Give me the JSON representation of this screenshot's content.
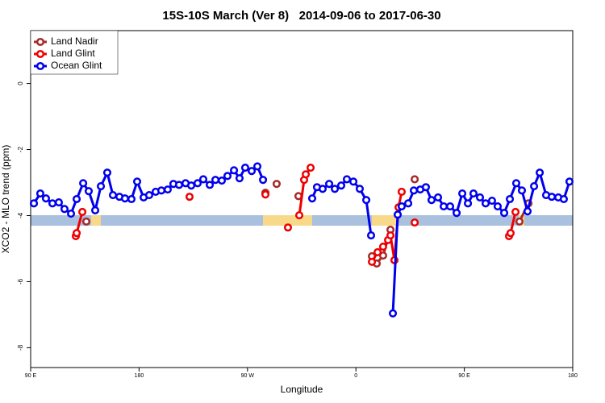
{
  "chart_data": {
    "type": "line",
    "title": "15S-10S March (Ver 8)   2014-09-06 to 2017-06-30",
    "x_label": "Longitude",
    "y_label": "XCO2 - MLO trend (ppm)",
    "xlim": [
      90,
      540
    ],
    "ylim": [
      -8.6,
      1.6
    ],
    "xticks": [
      {
        "value": 90,
        "label": "90 E"
      },
      {
        "value": 180,
        "label": "180"
      },
      {
        "value": 270,
        "label": "90 W"
      },
      {
        "value": 360,
        "label": "0"
      },
      {
        "value": 450,
        "label": "90 E"
      },
      {
        "value": 540,
        "label": "180"
      }
    ],
    "yticks": [
      0,
      -2,
      -4,
      -6,
      -8
    ],
    "legend": "top-left",
    "series": [
      {
        "name": "Land Nadir",
        "color": "#a52a2a",
        "x": [
          136.2,
          null,
          284.9,
          null,
          294.2,
          null,
          312.3,
          null,
          373.3,
          377.3,
          382.6,
          388.7,
          null,
          408.8,
          null,
          495.8,
          503.2
        ],
        "values": [
          -4.18,
          null,
          -3.31,
          null,
          -3.04,
          null,
          -3.41,
          null,
          -5.23,
          -5.45,
          -5.21,
          -4.43,
          null,
          -2.9,
          null,
          -4.18,
          -3.63
        ]
      },
      {
        "name": "Land Glint",
        "color": "#ee0000",
        "x": [
          127.5,
          128.2,
          132.9,
          null,
          221.9,
          null,
          284.9,
          null,
          303.6,
          null,
          313.0,
          317.0,
          318.4,
          322.4,
          null,
          373.3,
          378.0,
          382.6,
          386.7,
          388.7,
          392.0,
          395.4,
          398.0,
          null,
          408.8,
          null,
          487.1,
          488.4,
          492.5
        ],
        "values": [
          -4.62,
          -4.53,
          -3.89,
          null,
          -3.43,
          null,
          -3.36,
          null,
          -4.36,
          null,
          -3.99,
          -2.92,
          -2.75,
          -2.55,
          null,
          -5.4,
          -5.11,
          -4.94,
          -4.74,
          -4.6,
          -5.35,
          -3.75,
          -3.28,
          null,
          -4.21,
          null,
          -4.62,
          -4.53,
          -3.89
        ]
      },
      {
        "name": "Ocean Glint",
        "color": "#0000ee",
        "x": [
          92.7,
          98.0,
          102.7,
          108.1,
          113.4,
          118.1,
          123.5,
          128.2,
          133.6,
          138.2,
          143.6,
          148.3,
          153.6,
          158.3,
          163.7,
          168.3,
          173.7,
          178.4,
          183.8,
          188.4,
          193.8,
          198.5,
          203.8,
          208.5,
          213.2,
          218.6,
          223.3,
          228.6,
          233.3,
          238.7,
          243.4,
          248.7,
          253.4,
          258.8,
          263.4,
          268.1,
          273.5,
          278.2,
          282.9,
          null,
          323.7,
          327.7,
          332.4,
          337.8,
          342.5,
          347.8,
          352.5,
          357.9,
          363.2,
          368.6,
          372.6,
          null,
          390.7,
          394.7,
          398.0,
          403.4,
          408.1,
          413.4,
          418.1,
          422.8,
          428.2,
          432.9,
          438.2,
          443.6,
          448.3,
          453.0,
          457.6,
          463.0,
          467.7,
          473.0,
          477.7,
          483.1,
          487.8,
          493.1,
          497.8,
          502.5,
          507.9,
          512.6,
          517.9,
          522.6,
          528.0,
          532.6,
          537.3
        ],
        "values": [
          -3.63,
          -3.33,
          -3.48,
          -3.63,
          -3.6,
          -3.8,
          -3.94,
          -3.5,
          -3.02,
          -3.26,
          -3.84,
          -3.11,
          -2.7,
          -3.38,
          -3.43,
          -3.48,
          -3.5,
          -2.97,
          -3.45,
          -3.38,
          -3.28,
          -3.24,
          -3.21,
          -3.04,
          -3.07,
          -3.02,
          -3.09,
          -3.02,
          -2.9,
          -3.07,
          -2.92,
          -2.94,
          -2.8,
          -2.63,
          -2.87,
          -2.55,
          -2.65,
          -2.51,
          -2.92,
          null,
          -3.48,
          -3.14,
          -3.19,
          -3.04,
          -3.19,
          -3.09,
          -2.9,
          -2.97,
          -3.19,
          -3.53,
          -4.6,
          null,
          -6.96,
          -3.97,
          -3.72,
          -3.63,
          -3.24,
          -3.21,
          -3.14,
          -3.53,
          -3.45,
          -3.72,
          -3.72,
          -3.92,
          -3.33,
          -3.63,
          -3.33,
          -3.45,
          -3.63,
          -3.55,
          -3.72,
          -3.92,
          -3.5,
          -3.02,
          -3.24,
          -3.87,
          -3.11,
          -2.7,
          -3.38,
          -3.43,
          -3.45,
          -3.5,
          -2.97
        ]
      }
    ]
  }
}
